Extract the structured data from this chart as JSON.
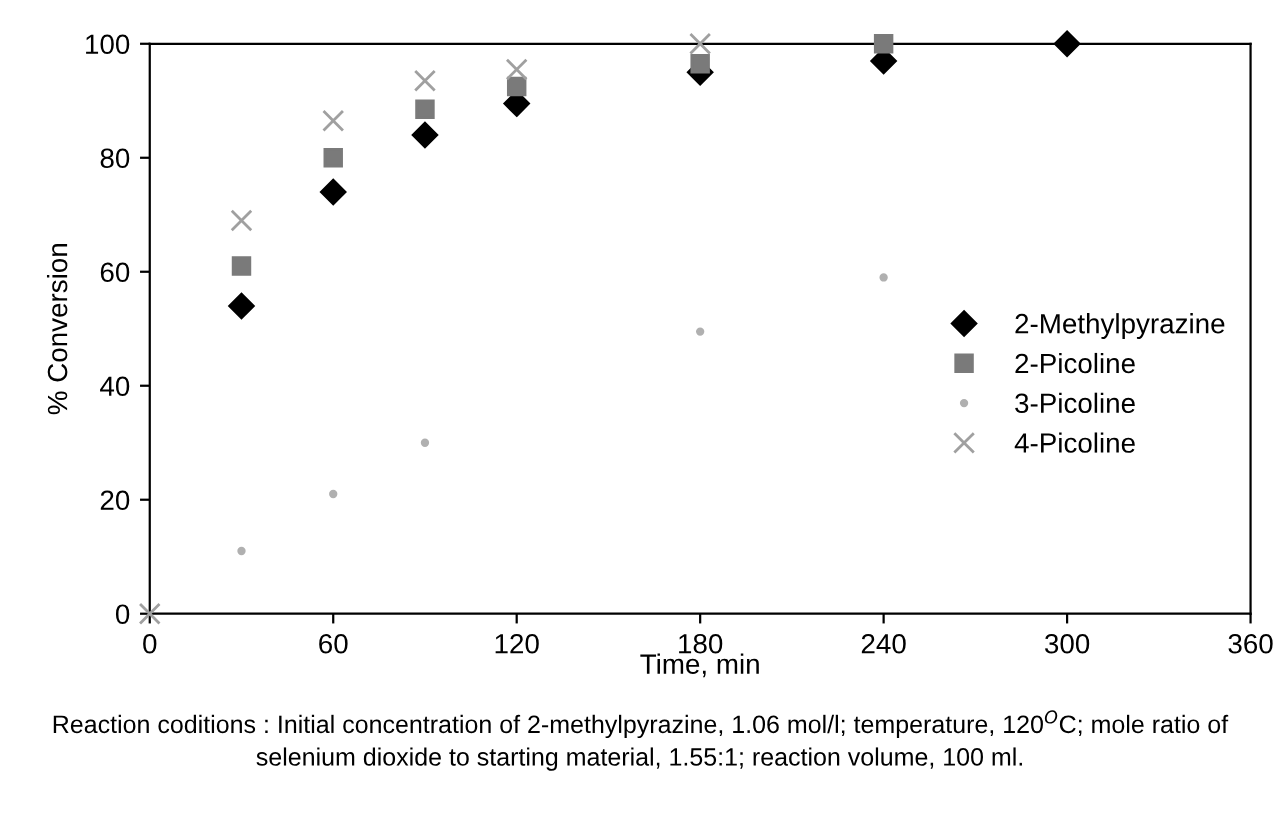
{
  "chart_data": {
    "type": "scatter",
    "xlabel": "Time, min",
    "ylabel": "% Conversion",
    "xlim": [
      0,
      360
    ],
    "xticks": [
      0,
      60,
      120,
      180,
      240,
      300,
      360
    ],
    "ylim": [
      0,
      100
    ],
    "yticks": [
      0,
      20,
      40,
      60,
      80,
      100
    ],
    "grid": false,
    "legend": "right",
    "series": [
      {
        "name": "2-Methylpyrazine",
        "color": "#000000",
        "marker": "diamond",
        "x": [
          30,
          60,
          90,
          120,
          180,
          240,
          300
        ],
        "values": [
          54,
          74,
          84,
          89.5,
          95,
          97,
          100
        ]
      },
      {
        "name": "2-Picoline",
        "color": "#7a7a7a",
        "marker": "square",
        "x": [
          30,
          60,
          90,
          120,
          180,
          240
        ],
        "values": [
          61,
          80,
          88.5,
          92.5,
          96.5,
          100
        ]
      },
      {
        "name": "3-Picoline",
        "color": "#b0b0b0",
        "marker": "circle",
        "x": [
          30,
          60,
          90,
          180,
          240
        ],
        "values": [
          11,
          21,
          30,
          49.5,
          59
        ]
      },
      {
        "name": "4-Picoline",
        "color": "#a0a0a0",
        "marker": "cross",
        "x": [
          0,
          30,
          60,
          90,
          120,
          180
        ],
        "values": [
          0,
          69,
          86.5,
          93.5,
          95.5,
          100
        ]
      }
    ],
    "annotations": [
      "Reaction coditions : Initial concentration of 2-methylpyrazine, 1.06 mol/l; temperature, 120$^{O}$C; mole ratio of selenium dioxide to starting material, 1.55:1; reaction volume, 100 ml."
    ]
  }
}
